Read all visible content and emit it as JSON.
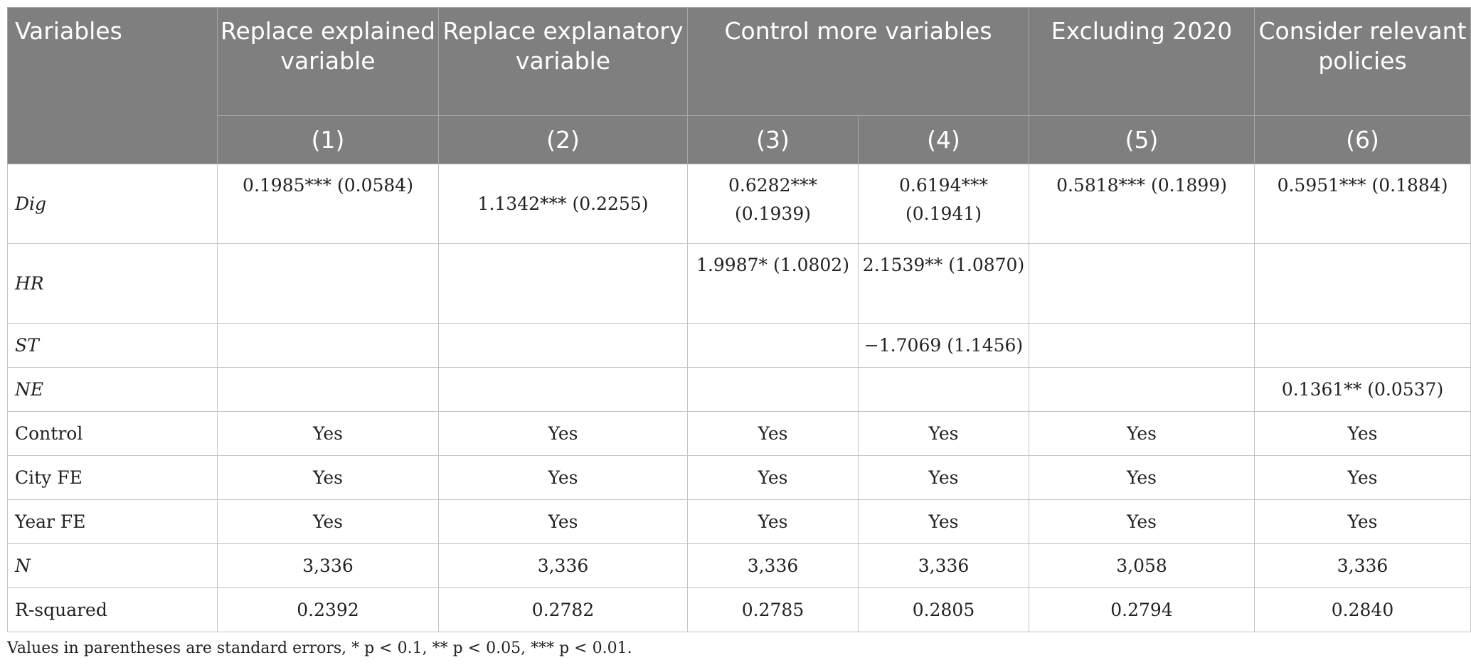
{
  "table": {
    "header": {
      "variables": "Variables",
      "groups": [
        "Replace explained variable",
        "Replace explanatory variable",
        "Control more variables",
        "Excluding 2020",
        "Consider relevant policies"
      ],
      "columns": [
        "(1)",
        "(2)",
        "(3)",
        "(4)",
        "(5)",
        "(6)"
      ]
    },
    "rows": [
      {
        "label": "Dig",
        "cells": [
          "0.1985*** (0.0584)",
          "1.1342*** (0.2255)",
          "0.6282*** (0.1939)",
          "0.6194*** (0.1941)",
          "0.5818*** (0.1899)",
          "0.5951*** (0.1884)"
        ]
      },
      {
        "label": "HR",
        "cells": [
          "",
          "",
          "1.9987* (1.0802)",
          "2.1539** (1.0870)",
          "",
          ""
        ]
      },
      {
        "label": "ST",
        "cells": [
          "",
          "",
          "",
          "−1.7069 (1.1456)",
          "",
          ""
        ]
      },
      {
        "label": "NE",
        "cells": [
          "",
          "",
          "",
          "",
          "",
          "0.1361** (0.0537)"
        ]
      },
      {
        "label": "Control",
        "cells": [
          "Yes",
          "Yes",
          "Yes",
          "Yes",
          "Yes",
          "Yes"
        ]
      },
      {
        "label": "City FE",
        "cells": [
          "Yes",
          "Yes",
          "Yes",
          "Yes",
          "Yes",
          "Yes"
        ]
      },
      {
        "label": "Year FE",
        "cells": [
          "Yes",
          "Yes",
          "Yes",
          "Yes",
          "Yes",
          "Yes"
        ]
      },
      {
        "label": "N",
        "cells": [
          "3,336",
          "3,336",
          "3,336",
          "3,336",
          "3,058",
          "3,336"
        ]
      },
      {
        "label": "R-squared",
        "cells": [
          "0.2392",
          "0.2782",
          "0.2785",
          "0.2805",
          "0.2794",
          "0.2840"
        ]
      }
    ],
    "note": "Values in parentheses are standard errors, * p < 0.1, ** p < 0.05, *** p < 0.01."
  }
}
